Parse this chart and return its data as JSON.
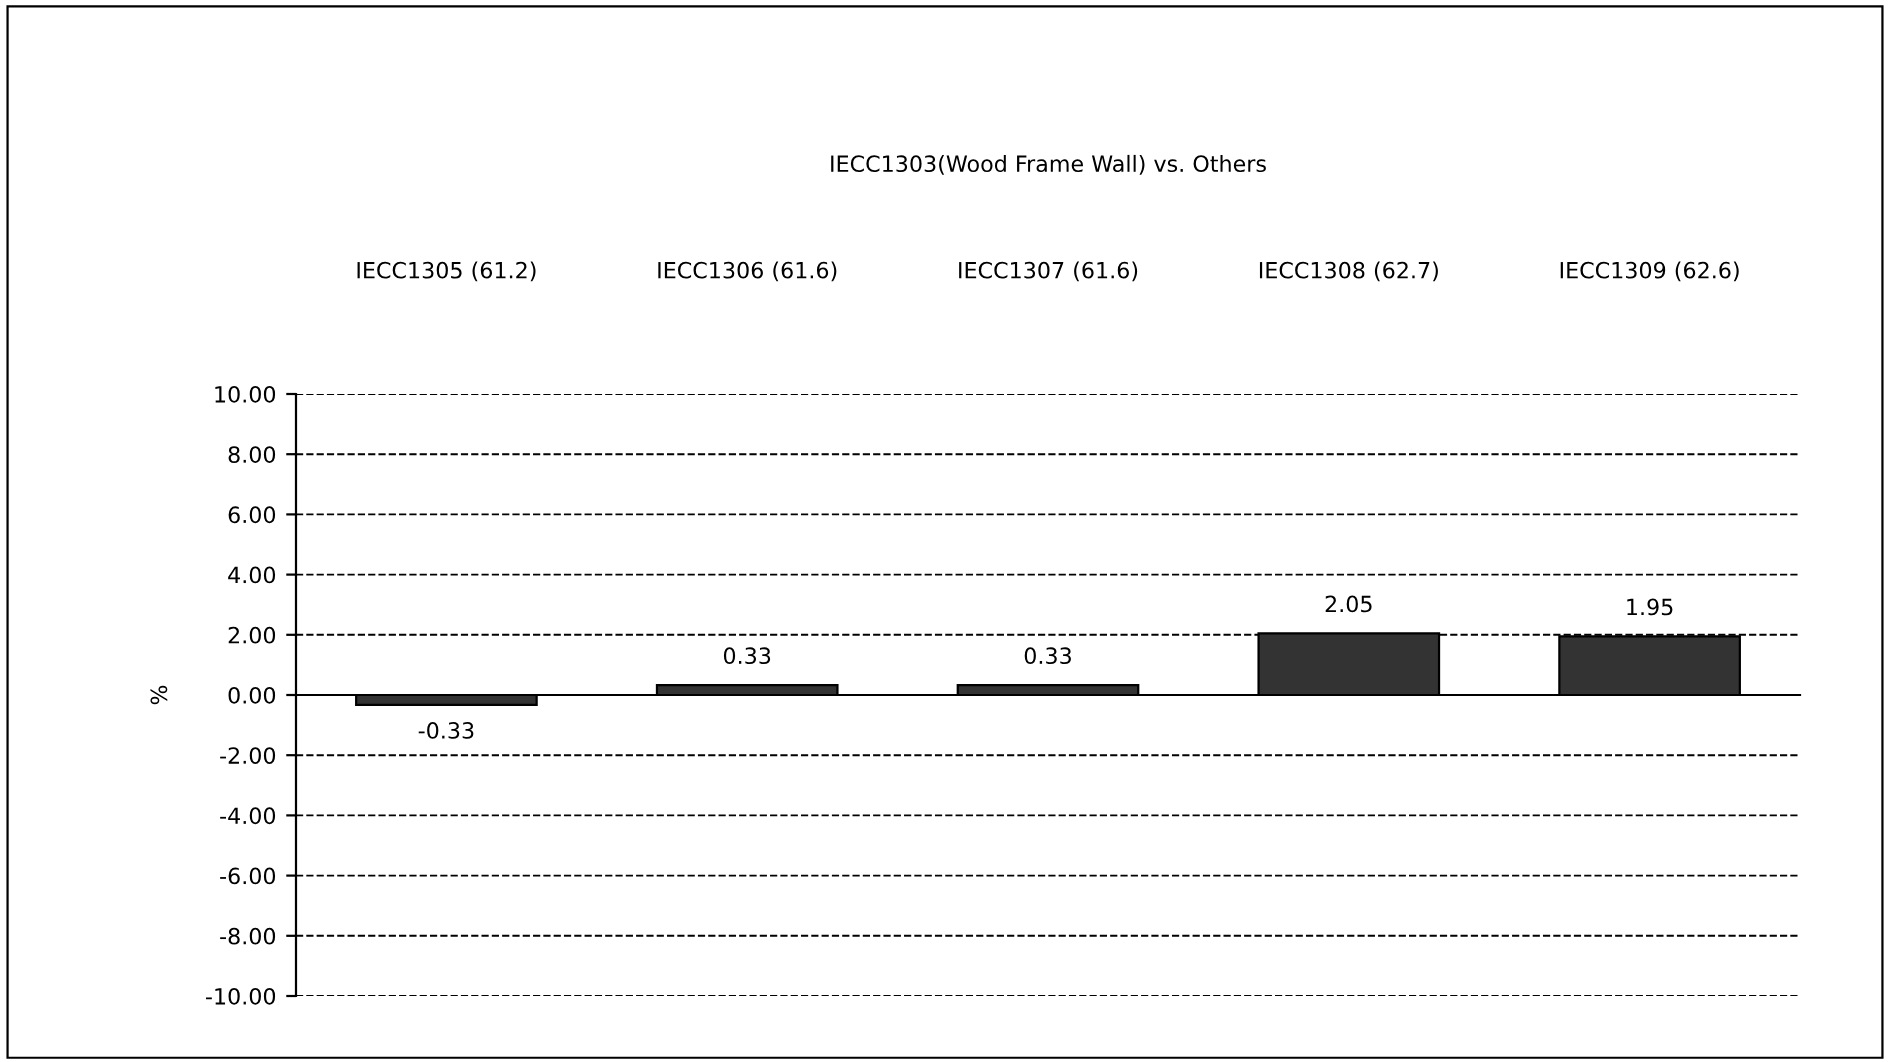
{
  "chart_data": {
    "type": "bar",
    "title": "IECC1303(Wood Frame Wall) vs. Others",
    "ylabel": "%",
    "categories": [
      "IECC1305 (61.2)",
      "IECC1306 (61.6)",
      "IECC1307 (61.6)",
      "IECC1308 (62.7)",
      "IECC1309 (62.6)"
    ],
    "values": [
      -0.33,
      0.33,
      0.33,
      2.05,
      1.95
    ],
    "value_labels": [
      "-0.33",
      "0.33",
      "0.33",
      "2.05",
      "1.95"
    ],
    "color": "#333333",
    "ylim": [
      -10,
      10
    ],
    "yticks": [
      {
        "value": -10,
        "label": "-10.00"
      },
      {
        "value": -8,
        "label": "-8.00"
      },
      {
        "value": -6,
        "label": "-6.00"
      },
      {
        "value": -4,
        "label": "-4.00"
      },
      {
        "value": -2,
        "label": "-2.00"
      },
      {
        "value": 0,
        "label": "0.00"
      },
      {
        "value": 2,
        "label": "2.00"
      },
      {
        "value": 4,
        "label": "4.00"
      },
      {
        "value": 6,
        "label": "6.00"
      },
      {
        "value": 8,
        "label": "8.00"
      },
      {
        "value": 10,
        "label": "10.00"
      }
    ],
    "grid": "y"
  }
}
